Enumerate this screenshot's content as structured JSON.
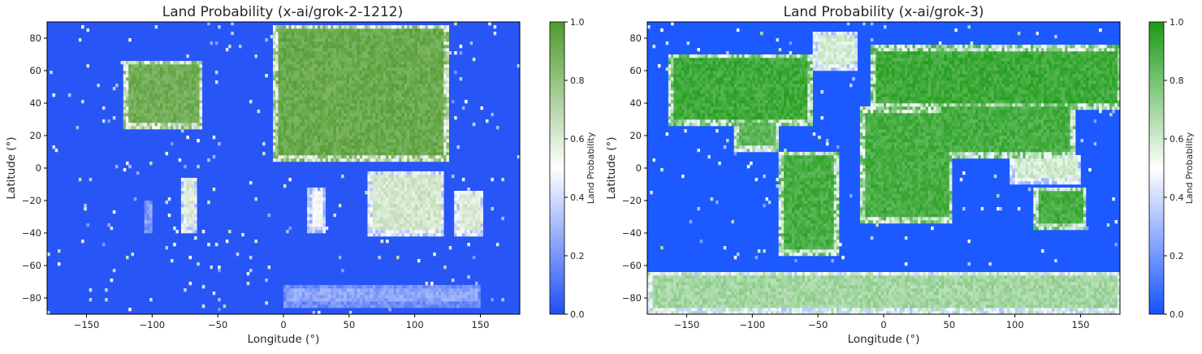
{
  "chart_data": [
    {
      "type": "heatmap",
      "title": "Land Probability (x-ai/grok-2-1212)",
      "xlabel": "Longitude (°)",
      "ylabel": "Latitude (°)",
      "xlim": [
        -180,
        180
      ],
      "ylim": [
        -90,
        90
      ],
      "xticks": [
        -150,
        -100,
        -50,
        0,
        50,
        100,
        150
      ],
      "yticks": [
        -80,
        -60,
        -40,
        -20,
        0,
        20,
        40,
        60,
        80
      ],
      "colorbar": {
        "label": "Land Probability",
        "range": [
          0,
          1
        ],
        "ticks": [
          "0.0",
          "0.2",
          "0.4",
          "0.6",
          "0.8",
          "1.0"
        ]
      },
      "colors": {
        "low": "#1f4ef5",
        "mid": "#ffffff",
        "high": "#4e9a2c"
      },
      "background_value": 0.02,
      "land_regions": [
        {
          "lon": [
            -122,
            -62
          ],
          "lat": [
            24,
            66
          ],
          "value": 0.9
        },
        {
          "lon": [
            -78,
            -66
          ],
          "lat": [
            -40,
            -6
          ],
          "value": 0.6
        },
        {
          "lon": [
            -107,
            -100
          ],
          "lat": [
            -40,
            -20
          ],
          "value": 0.3
        },
        {
          "lon": [
            -8,
            125
          ],
          "lat": [
            4,
            88
          ],
          "value": 0.92
        },
        {
          "lon": [
            18,
            32
          ],
          "lat": [
            -40,
            -12
          ],
          "value": 0.5
        },
        {
          "lon": [
            64,
            122
          ],
          "lat": [
            -42,
            -2
          ],
          "value": 0.62
        },
        {
          "lon": [
            130,
            152
          ],
          "lat": [
            -42,
            -14
          ],
          "value": 0.6
        },
        {
          "lon": [
            0,
            150
          ],
          "lat": [
            -86,
            -72
          ],
          "value": 0.25
        }
      ]
    },
    {
      "type": "heatmap",
      "title": "Land Probability (x-ai/grok-3)",
      "xlabel": "Longitude (°)",
      "ylabel": "Latitude (°)",
      "xlim": [
        -180,
        180
      ],
      "ylim": [
        -90,
        90
      ],
      "xticks": [
        -150,
        -100,
        -50,
        0,
        50,
        100,
        150
      ],
      "yticks": [
        -80,
        -60,
        -40,
        -20,
        0,
        20,
        40,
        60,
        80
      ],
      "colorbar": {
        "label": "Land Probability",
        "range": [
          0,
          1
        ],
        "ticks": [
          "0.0",
          "0.2",
          "0.4",
          "0.6",
          "0.8",
          "1.0"
        ]
      },
      "colors": {
        "low": "#1352ff",
        "mid": "#ffffff",
        "high": "#1a9a14"
      },
      "background_value": 0.02,
      "land_regions": [
        {
          "lon": [
            -165,
            -55
          ],
          "lat": [
            25,
            70
          ],
          "value": 0.92
        },
        {
          "lon": [
            -115,
            -80
          ],
          "lat": [
            10,
            30
          ],
          "value": 0.85
        },
        {
          "lon": [
            -80,
            -35
          ],
          "lat": [
            -55,
            10
          ],
          "value": 0.9
        },
        {
          "lon": [
            -18,
            52
          ],
          "lat": [
            -35,
            37
          ],
          "value": 0.9
        },
        {
          "lon": [
            -10,
            180
          ],
          "lat": [
            35,
            75
          ],
          "value": 0.92
        },
        {
          "lon": [
            40,
            145
          ],
          "lat": [
            5,
            40
          ],
          "value": 0.9
        },
        {
          "lon": [
            95,
            150
          ],
          "lat": [
            -10,
            8
          ],
          "value": 0.6
        },
        {
          "lon": [
            113,
            154
          ],
          "lat": [
            -39,
            -12
          ],
          "value": 0.9
        },
        {
          "lon": [
            -180,
            180
          ],
          "lat": [
            -90,
            -64
          ],
          "value": 0.7
        },
        {
          "lon": [
            -55,
            -20
          ],
          "lat": [
            60,
            84
          ],
          "value": 0.6
        }
      ]
    }
  ]
}
